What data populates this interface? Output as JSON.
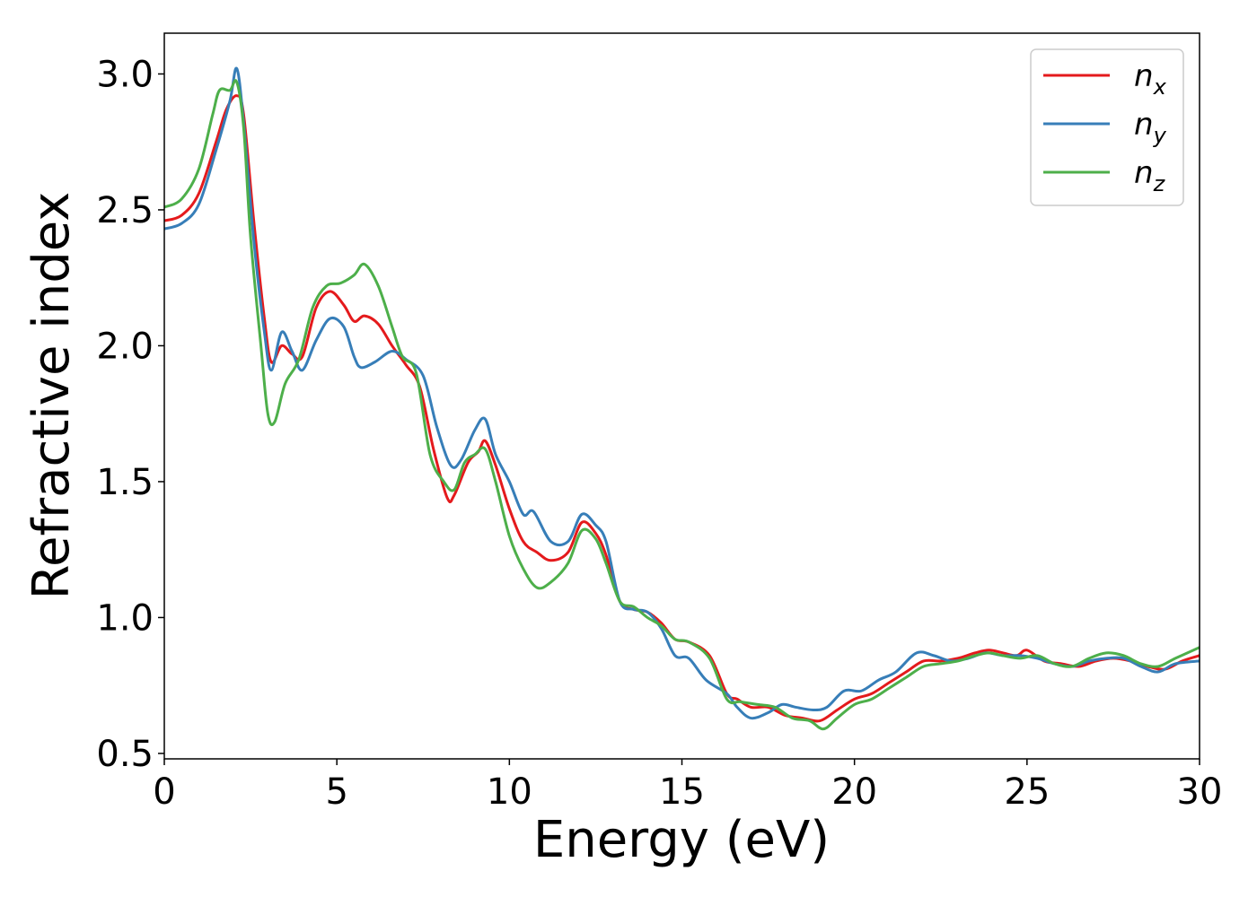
{
  "chart_data": {
    "type": "line",
    "xlabel": "Energy (eV)",
    "ylabel": "Refractive index",
    "xlim": [
      0,
      30
    ],
    "ylim": [
      0.48,
      3.15
    ],
    "xticks": [
      0,
      5,
      10,
      15,
      20,
      25,
      30
    ],
    "yticks": [
      0.5,
      1.0,
      1.5,
      2.0,
      2.5,
      3.0
    ],
    "xtick_labels": [
      "0",
      "5",
      "10",
      "15",
      "20",
      "25",
      "30"
    ],
    "ytick_labels": [
      "0.5",
      "1.0",
      "1.5",
      "2.0",
      "2.5",
      "3.0"
    ],
    "grid": false,
    "legend_position": "top-right",
    "series": [
      {
        "name": "n",
        "subscript": "x",
        "color": "#e41a1c",
        "points": [
          [
            0,
            2.46
          ],
          [
            0.5,
            2.48
          ],
          [
            1,
            2.56
          ],
          [
            1.5,
            2.75
          ],
          [
            1.8,
            2.87
          ],
          [
            2.1,
            2.92
          ],
          [
            2.3,
            2.85
          ],
          [
            2.6,
            2.45
          ],
          [
            2.9,
            2.1
          ],
          [
            3.1,
            1.94
          ],
          [
            3.4,
            2.0
          ],
          [
            3.7,
            1.97
          ],
          [
            4.0,
            1.96
          ],
          [
            4.4,
            2.14
          ],
          [
            4.8,
            2.2
          ],
          [
            5.2,
            2.15
          ],
          [
            5.5,
            2.09
          ],
          [
            5.8,
            2.11
          ],
          [
            6.2,
            2.08
          ],
          [
            6.6,
            2.0
          ],
          [
            7.0,
            1.93
          ],
          [
            7.4,
            1.85
          ],
          [
            7.8,
            1.62
          ],
          [
            8.2,
            1.44
          ],
          [
            8.4,
            1.45
          ],
          [
            8.8,
            1.57
          ],
          [
            9.1,
            1.61
          ],
          [
            9.3,
            1.65
          ],
          [
            9.6,
            1.56
          ],
          [
            10.0,
            1.4
          ],
          [
            10.4,
            1.28
          ],
          [
            10.8,
            1.24
          ],
          [
            11.2,
            1.21
          ],
          [
            11.7,
            1.24
          ],
          [
            12.1,
            1.35
          ],
          [
            12.5,
            1.31
          ],
          [
            12.8,
            1.23
          ],
          [
            13.2,
            1.06
          ],
          [
            13.6,
            1.03
          ],
          [
            14.0,
            1.02
          ],
          [
            14.4,
            0.98
          ],
          [
            14.8,
            0.92
          ],
          [
            15.2,
            0.91
          ],
          [
            15.8,
            0.86
          ],
          [
            16.3,
            0.72
          ],
          [
            16.6,
            0.7
          ],
          [
            17.0,
            0.67
          ],
          [
            17.5,
            0.67
          ],
          [
            18.0,
            0.64
          ],
          [
            18.5,
            0.63
          ],
          [
            19.0,
            0.62
          ],
          [
            19.5,
            0.66
          ],
          [
            20.0,
            0.7
          ],
          [
            20.5,
            0.72
          ],
          [
            21.0,
            0.76
          ],
          [
            21.5,
            0.8
          ],
          [
            22.0,
            0.84
          ],
          [
            22.5,
            0.84
          ],
          [
            23.0,
            0.85
          ],
          [
            23.5,
            0.87
          ],
          [
            23.9,
            0.88
          ],
          [
            24.3,
            0.87
          ],
          [
            24.7,
            0.86
          ],
          [
            25.0,
            0.88
          ],
          [
            25.5,
            0.84
          ],
          [
            26.0,
            0.83
          ],
          [
            26.5,
            0.82
          ],
          [
            27.0,
            0.84
          ],
          [
            27.5,
            0.85
          ],
          [
            28.0,
            0.84
          ],
          [
            28.5,
            0.82
          ],
          [
            29.0,
            0.81
          ],
          [
            29.5,
            0.84
          ],
          [
            30.0,
            0.86
          ]
        ]
      },
      {
        "name": "n",
        "subscript": "y",
        "color": "#377eb8",
        "points": [
          [
            0,
            2.43
          ],
          [
            0.5,
            2.45
          ],
          [
            1,
            2.52
          ],
          [
            1.5,
            2.72
          ],
          [
            1.9,
            2.9
          ],
          [
            2.1,
            3.02
          ],
          [
            2.3,
            2.82
          ],
          [
            2.6,
            2.38
          ],
          [
            2.9,
            2.05
          ],
          [
            3.1,
            1.91
          ],
          [
            3.4,
            2.05
          ],
          [
            3.7,
            1.98
          ],
          [
            4.0,
            1.91
          ],
          [
            4.4,
            2.02
          ],
          [
            4.8,
            2.1
          ],
          [
            5.2,
            2.07
          ],
          [
            5.5,
            1.96
          ],
          [
            5.7,
            1.92
          ],
          [
            6.1,
            1.94
          ],
          [
            6.6,
            1.98
          ],
          [
            7.0,
            1.95
          ],
          [
            7.5,
            1.89
          ],
          [
            7.9,
            1.7
          ],
          [
            8.3,
            1.56
          ],
          [
            8.6,
            1.58
          ],
          [
            9.0,
            1.69
          ],
          [
            9.3,
            1.73
          ],
          [
            9.6,
            1.6
          ],
          [
            10.0,
            1.5
          ],
          [
            10.4,
            1.38
          ],
          [
            10.7,
            1.39
          ],
          [
            11.2,
            1.28
          ],
          [
            11.7,
            1.28
          ],
          [
            12.1,
            1.38
          ],
          [
            12.5,
            1.34
          ],
          [
            12.8,
            1.28
          ],
          [
            13.2,
            1.06
          ],
          [
            13.6,
            1.03
          ],
          [
            14.0,
            1.02
          ],
          [
            14.4,
            0.96
          ],
          [
            14.8,
            0.86
          ],
          [
            15.2,
            0.85
          ],
          [
            15.7,
            0.77
          ],
          [
            16.3,
            0.72
          ],
          [
            16.6,
            0.67
          ],
          [
            17.0,
            0.63
          ],
          [
            17.5,
            0.65
          ],
          [
            17.9,
            0.68
          ],
          [
            18.3,
            0.67
          ],
          [
            18.8,
            0.66
          ],
          [
            19.2,
            0.67
          ],
          [
            19.7,
            0.73
          ],
          [
            20.2,
            0.73
          ],
          [
            20.7,
            0.77
          ],
          [
            21.2,
            0.8
          ],
          [
            21.8,
            0.87
          ],
          [
            22.3,
            0.86
          ],
          [
            22.8,
            0.84
          ],
          [
            23.3,
            0.85
          ],
          [
            23.8,
            0.87
          ],
          [
            24.3,
            0.86
          ],
          [
            24.8,
            0.86
          ],
          [
            25.3,
            0.85
          ],
          [
            25.8,
            0.83
          ],
          [
            26.3,
            0.82
          ],
          [
            26.8,
            0.84
          ],
          [
            27.3,
            0.85
          ],
          [
            27.8,
            0.85
          ],
          [
            28.3,
            0.82
          ],
          [
            28.8,
            0.8
          ],
          [
            29.3,
            0.83
          ],
          [
            30.0,
            0.84
          ]
        ]
      },
      {
        "name": "n",
        "subscript": "z",
        "color": "#4daf4a",
        "points": [
          [
            0,
            2.51
          ],
          [
            0.5,
            2.54
          ],
          [
            1,
            2.65
          ],
          [
            1.4,
            2.85
          ],
          [
            1.6,
            2.94
          ],
          [
            1.9,
            2.94
          ],
          [
            2.1,
            2.97
          ],
          [
            2.3,
            2.8
          ],
          [
            2.5,
            2.4
          ],
          [
            2.8,
            2.0
          ],
          [
            3.0,
            1.75
          ],
          [
            3.2,
            1.72
          ],
          [
            3.5,
            1.86
          ],
          [
            3.9,
            1.95
          ],
          [
            4.3,
            2.14
          ],
          [
            4.7,
            2.22
          ],
          [
            5.1,
            2.23
          ],
          [
            5.5,
            2.26
          ],
          [
            5.8,
            2.3
          ],
          [
            6.2,
            2.22
          ],
          [
            6.6,
            2.07
          ],
          [
            6.9,
            1.96
          ],
          [
            7.3,
            1.9
          ],
          [
            7.7,
            1.6
          ],
          [
            8.1,
            1.5
          ],
          [
            8.4,
            1.47
          ],
          [
            8.7,
            1.57
          ],
          [
            9.0,
            1.6
          ],
          [
            9.3,
            1.62
          ],
          [
            9.6,
            1.5
          ],
          [
            10.0,
            1.3
          ],
          [
            10.4,
            1.18
          ],
          [
            10.8,
            1.11
          ],
          [
            11.2,
            1.13
          ],
          [
            11.7,
            1.2
          ],
          [
            12.1,
            1.32
          ],
          [
            12.5,
            1.29
          ],
          [
            12.8,
            1.2
          ],
          [
            13.2,
            1.06
          ],
          [
            13.6,
            1.04
          ],
          [
            14.0,
            1.0
          ],
          [
            14.4,
            0.97
          ],
          [
            14.8,
            0.92
          ],
          [
            15.2,
            0.91
          ],
          [
            15.8,
            0.85
          ],
          [
            16.3,
            0.7
          ],
          [
            16.7,
            0.69
          ],
          [
            17.2,
            0.68
          ],
          [
            17.7,
            0.67
          ],
          [
            18.2,
            0.63
          ],
          [
            18.7,
            0.62
          ],
          [
            19.1,
            0.59
          ],
          [
            19.5,
            0.63
          ],
          [
            20.0,
            0.68
          ],
          [
            20.5,
            0.7
          ],
          [
            21.0,
            0.74
          ],
          [
            21.5,
            0.78
          ],
          [
            22.0,
            0.82
          ],
          [
            22.5,
            0.83
          ],
          [
            23.0,
            0.84
          ],
          [
            23.5,
            0.86
          ],
          [
            23.9,
            0.87
          ],
          [
            24.3,
            0.86
          ],
          [
            24.8,
            0.85
          ],
          [
            25.3,
            0.86
          ],
          [
            25.8,
            0.83
          ],
          [
            26.3,
            0.82
          ],
          [
            26.8,
            0.85
          ],
          [
            27.3,
            0.87
          ],
          [
            27.8,
            0.86
          ],
          [
            28.3,
            0.83
          ],
          [
            28.8,
            0.82
          ],
          [
            29.3,
            0.85
          ],
          [
            30.0,
            0.89
          ]
        ]
      }
    ]
  }
}
